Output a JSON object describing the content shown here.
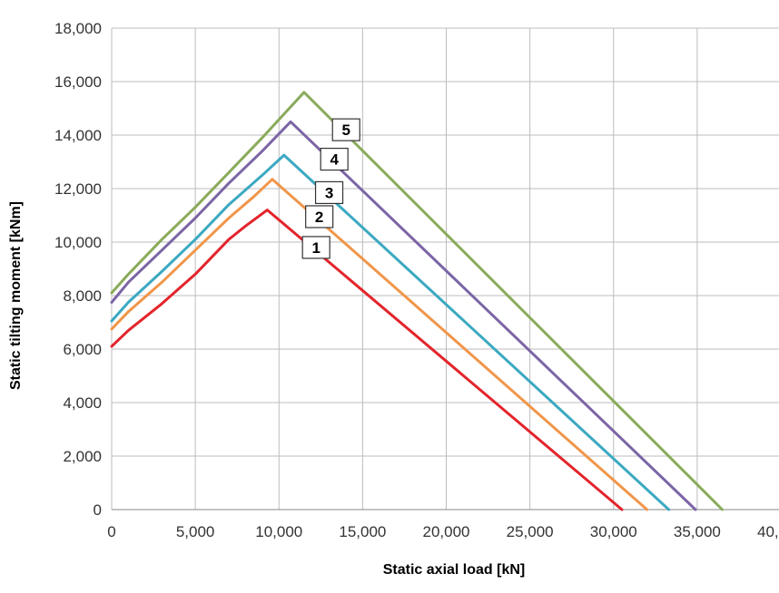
{
  "chart_data": {
    "type": "line",
    "title": "",
    "xlabel": "Static axial load [kN]",
    "ylabel": "Static tilting moment [kNm]",
    "xlim": [
      0,
      40000
    ],
    "ylim": [
      0,
      18000
    ],
    "x_ticks": [
      "0",
      "5,000",
      "10,000",
      "15,000",
      "20,000",
      "25,000",
      "30,000",
      "35,000",
      "40,000"
    ],
    "y_ticks": [
      "0",
      "2,000",
      "4,000",
      "6,000",
      "8,000",
      "10,000",
      "12,000",
      "14,000",
      "16,000",
      "18,000"
    ],
    "grid": true,
    "legend": "none",
    "series": [
      {
        "label": "1",
        "color": "#e3242b",
        "x": [
          0,
          1000,
          3000,
          5000,
          7000,
          8000,
          9300,
          30500
        ],
        "y": [
          6100,
          6700,
          7700,
          8800,
          10100,
          10600,
          11200,
          0
        ]
      },
      {
        "label": "2",
        "color": "#f0964a",
        "x": [
          0,
          1000,
          3000,
          5000,
          7000,
          8500,
          9600,
          32000
        ],
        "y": [
          6750,
          7400,
          8500,
          9700,
          10900,
          11700,
          12350,
          0
        ]
      },
      {
        "label": "3",
        "color": "#3ba9c1",
        "x": [
          0,
          1000,
          3000,
          5000,
          7000,
          9000,
          10300,
          33300
        ],
        "y": [
          7050,
          7750,
          8900,
          10100,
          11400,
          12500,
          13250,
          0
        ]
      },
      {
        "label": "4",
        "color": "#7b65a6",
        "x": [
          0,
          1000,
          3000,
          5000,
          7000,
          9000,
          10700,
          34900
        ],
        "y": [
          7750,
          8500,
          9700,
          10900,
          12200,
          13400,
          14500,
          0
        ]
      },
      {
        "label": "5",
        "color": "#8aab5b",
        "x": [
          0,
          1000,
          3000,
          5000,
          7000,
          9000,
          11500,
          36500
        ],
        "y": [
          8100,
          8800,
          10100,
          11300,
          12600,
          13900,
          15600,
          0
        ]
      }
    ]
  }
}
